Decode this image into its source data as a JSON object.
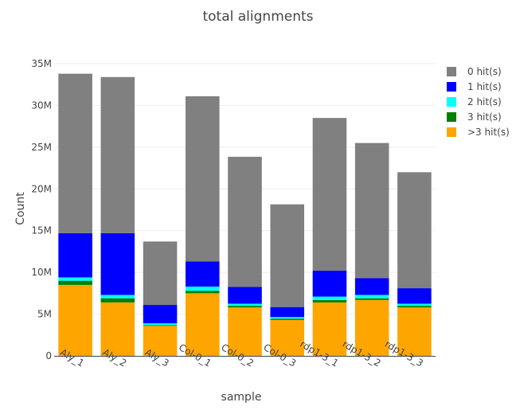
{
  "chart_data": {
    "type": "bar",
    "stacked": true,
    "title": "total alignments",
    "xlabel": "sample",
    "ylabel": "Count",
    "ylim": [
      0,
      35000000
    ],
    "yticks": [
      0,
      5000000,
      10000000,
      15000000,
      20000000,
      25000000,
      30000000,
      35000000
    ],
    "ytick_labels": [
      "0",
      "5M",
      "10M",
      "15M",
      "20M",
      "25M",
      "30M",
      "35M"
    ],
    "grid": true,
    "legend_position": "top-right",
    "categories": [
      "Aly_1",
      "Aly_2",
      "Aly_3",
      "Col-0_1",
      "Col-0_2",
      "Col-0_3",
      "rdp1-3_1",
      "rdp1-3_2",
      "rdp1-3_3"
    ],
    "series": [
      {
        "name": ">3 hit(s)",
        "color": "#ffa500",
        "values": [
          8500000,
          6400000,
          3600000,
          7500000,
          5800000,
          4300000,
          6400000,
          6700000,
          5800000
        ]
      },
      {
        "name": "3 hit(s)",
        "color": "#008000",
        "values": [
          500000,
          500000,
          100000,
          300000,
          200000,
          150000,
          300000,
          200000,
          200000
        ]
      },
      {
        "name": "2 hit(s)",
        "color": "#00ffff",
        "values": [
          400000,
          400000,
          200000,
          500000,
          250000,
          200000,
          400000,
          400000,
          250000
        ]
      },
      {
        "name": "1 hit(s)",
        "color": "#0000ff",
        "values": [
          5300000,
          7400000,
          2200000,
          3000000,
          2000000,
          1200000,
          3100000,
          2000000,
          1850000
        ]
      },
      {
        "name": "0 hit(s)",
        "color": "#808080",
        "values": [
          19100000,
          18700000,
          7600000,
          19800000,
          15600000,
          12300000,
          18300000,
          16200000,
          13900000
        ]
      }
    ]
  }
}
